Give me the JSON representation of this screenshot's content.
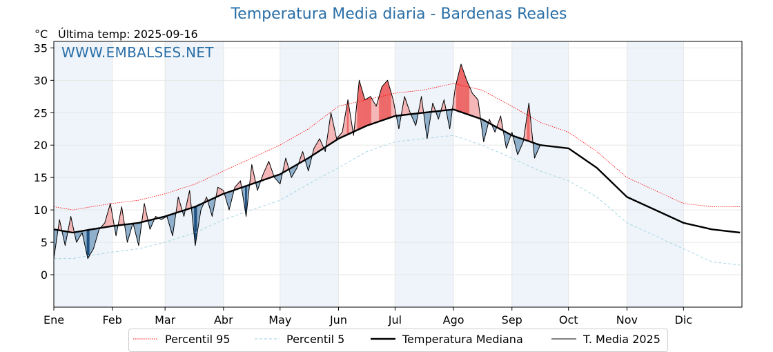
{
  "header": {
    "title": "Temperatura Media diaria - Bardenas Reales",
    "unit": "°C",
    "last_temp": "Última temp: 2025-09-16",
    "watermark": "WWW.EMBALSES.NET"
  },
  "legend": {
    "items": [
      {
        "label": "Percentil 95",
        "color": "#ff0000",
        "style": "dotted"
      },
      {
        "label": "Percentil 5",
        "color": "#add8e6",
        "style": "dashed"
      },
      {
        "label": "Temperatura Mediana",
        "color": "#000000",
        "style": "thick"
      },
      {
        "label": "T. Media 2025",
        "color": "#000000",
        "style": "thin"
      }
    ]
  },
  "colors": {
    "above_fill": "#f4b6b6",
    "above_strong_fill": "#ee6a6a",
    "below_fill": "#8fb0cc",
    "below_strong_fill": "#1d4f80",
    "month_band": "#eef4fa",
    "grid": "#e6e6e6"
  },
  "chart_data": {
    "type": "line",
    "title": "Temperatura Media diaria - Bardenas Reales",
    "ylabel": "°C",
    "ylim": [
      -5,
      36
    ],
    "yticks": [
      0,
      5,
      10,
      15,
      20,
      25,
      30,
      35
    ],
    "xlim": [
      0,
      365
    ],
    "months": [
      "Ene",
      "Feb",
      "Mar",
      "Abr",
      "May",
      "Jun",
      "Jul",
      "Ago",
      "Sep",
      "Oct",
      "Nov",
      "Dic"
    ],
    "month_start_days": [
      0,
      31,
      59,
      90,
      120,
      151,
      181,
      212,
      243,
      273,
      304,
      334
    ],
    "grid": true,
    "legend_position": "bottom",
    "series": [
      {
        "name": "Percentil 95",
        "x": [
          0,
          10,
          20,
          31,
          45,
          59,
          75,
          90,
          105,
          120,
          135,
          151,
          166,
          181,
          196,
          212,
          227,
          243,
          258,
          273,
          288,
          304,
          319,
          334,
          349,
          364
        ],
        "values": [
          10.5,
          10.0,
          10.5,
          11.0,
          11.5,
          12.5,
          14.0,
          16.0,
          18.0,
          20.0,
          22.5,
          26.0,
          27.0,
          28.0,
          28.5,
          29.5,
          28.5,
          26.0,
          23.5,
          22.0,
          19.0,
          15.0,
          13.0,
          11.0,
          10.5,
          10.5
        ]
      },
      {
        "name": "Percentil 5",
        "x": [
          0,
          10,
          20,
          31,
          45,
          59,
          75,
          90,
          105,
          120,
          135,
          151,
          166,
          181,
          196,
          212,
          227,
          243,
          258,
          273,
          288,
          304,
          319,
          334,
          349,
          364
        ],
        "values": [
          2.5,
          2.5,
          3.0,
          3.5,
          4.0,
          5.0,
          6.5,
          8.5,
          10.0,
          11.5,
          14.0,
          16.5,
          19.0,
          20.5,
          21.0,
          21.5,
          20.0,
          18.0,
          16.0,
          14.5,
          12.0,
          8.0,
          6.0,
          4.0,
          2.0,
          1.5
        ]
      },
      {
        "name": "Temperatura Mediana",
        "x": [
          0,
          10,
          20,
          31,
          45,
          59,
          75,
          90,
          105,
          120,
          135,
          151,
          166,
          181,
          196,
          212,
          227,
          243,
          258,
          273,
          288,
          304,
          319,
          334,
          349,
          364
        ],
        "values": [
          7.0,
          6.5,
          7.0,
          7.5,
          8.0,
          9.0,
          10.5,
          12.5,
          14.0,
          15.5,
          18.0,
          21.0,
          23.0,
          24.5,
          25.0,
          25.5,
          24.0,
          21.5,
          20.0,
          19.5,
          16.5,
          12.0,
          10.0,
          8.0,
          7.0,
          6.5
        ]
      },
      {
        "name": "T. Media 2025",
        "x": [
          0,
          3,
          6,
          9,
          12,
          15,
          18,
          21,
          24,
          27,
          30,
          33,
          36,
          39,
          42,
          45,
          48,
          51,
          54,
          57,
          60,
          63,
          66,
          69,
          72,
          75,
          78,
          81,
          84,
          87,
          90,
          93,
          96,
          99,
          102,
          105,
          108,
          111,
          114,
          117,
          120,
          123,
          126,
          129,
          132,
          135,
          138,
          141,
          144,
          147,
          150,
          153,
          156,
          159,
          162,
          165,
          168,
          171,
          174,
          177,
          180,
          183,
          186,
          189,
          192,
          195,
          198,
          201,
          204,
          207,
          210,
          213,
          216,
          219,
          222,
          225,
          228,
          231,
          234,
          237,
          240,
          243,
          246,
          249,
          252,
          255,
          258
        ],
        "values": [
          2.5,
          8.5,
          4.5,
          9.0,
          5.0,
          6.5,
          2.5,
          4.0,
          7.0,
          8.0,
          11.0,
          6.0,
          10.5,
          5.0,
          8.0,
          4.5,
          11.0,
          7.0,
          9.0,
          8.5,
          9.0,
          6.0,
          12.0,
          9.0,
          13.0,
          4.5,
          10.0,
          12.0,
          9.0,
          13.5,
          13.0,
          10.0,
          13.5,
          14.5,
          9.0,
          17.0,
          13.0,
          15.5,
          17.5,
          15.0,
          14.0,
          18.0,
          15.0,
          16.5,
          19.0,
          16.0,
          19.5,
          21.0,
          19.0,
          25.0,
          21.0,
          22.0,
          27.0,
          21.5,
          30.0,
          27.0,
          27.5,
          26.0,
          29.0,
          30.0,
          27.0,
          22.5,
          27.5,
          25.0,
          23.0,
          27.5,
          21.0,
          26.5,
          24.0,
          27.0,
          22.5,
          29.0,
          32.5,
          30.0,
          28.0,
          27.0,
          20.5,
          24.0,
          22.0,
          24.5,
          19.5,
          22.0,
          18.5,
          20.5,
          26.5,
          18.0,
          20.0
        ]
      }
    ]
  }
}
